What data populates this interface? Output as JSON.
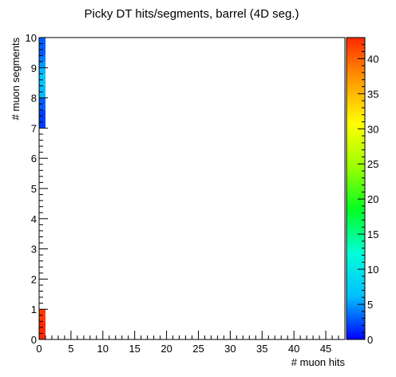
{
  "chart_data": {
    "type": "heatmap",
    "title": "Picky DT hits/segments, barrel (4D seg.)",
    "xlabel": "# muon hits",
    "ylabel": "# muon segments",
    "xlim": [
      0,
      48
    ],
    "ylim": [
      0,
      10
    ],
    "x_bin_width": 1,
    "y_bin_width": 0.2,
    "x_major_ticks": [
      0,
      5,
      10,
      15,
      20,
      25,
      30,
      35,
      40,
      45
    ],
    "y_major_ticks": [
      0,
      1,
      2,
      3,
      4,
      5,
      6,
      7,
      8,
      9,
      10
    ],
    "z_range": [
      0,
      43
    ],
    "z_ticks": [
      0,
      5,
      10,
      15,
      20,
      25,
      30,
      35,
      40
    ],
    "palette": [
      "#0000ff",
      "#00bfff",
      "#00ffd8",
      "#00ff22",
      "#9bff00",
      "#ffff00",
      "#ff9b00",
      "#ff2800"
    ],
    "cells": [
      {
        "x0": 0,
        "x1": 1,
        "y0": 0.0,
        "y1": 0.2,
        "z": 43
      },
      {
        "x0": 0,
        "x1": 1,
        "y0": 0.2,
        "y1": 0.4,
        "z": 43
      },
      {
        "x0": 0,
        "x1": 1,
        "y0": 0.4,
        "y1": 0.6,
        "z": 43
      },
      {
        "x0": 0,
        "x1": 1,
        "y0": 0.6,
        "y1": 0.8,
        "z": 42
      },
      {
        "x0": 0,
        "x1": 1,
        "y0": 0.8,
        "y1": 1.0,
        "z": 42
      },
      {
        "x0": 0,
        "x1": 1,
        "y0": 7.0,
        "y1": 7.2,
        "z": 2
      },
      {
        "x0": 0,
        "x1": 1,
        "y0": 7.2,
        "y1": 7.4,
        "z": 2
      },
      {
        "x0": 0,
        "x1": 1,
        "y0": 7.4,
        "y1": 7.6,
        "z": 2
      },
      {
        "x0": 0,
        "x1": 1,
        "y0": 7.6,
        "y1": 7.8,
        "z": 3
      },
      {
        "x0": 0,
        "x1": 1,
        "y0": 7.8,
        "y1": 8.0,
        "z": 3
      },
      {
        "x0": 0,
        "x1": 1,
        "y0": 8.0,
        "y1": 8.2,
        "z": 6
      },
      {
        "x0": 0,
        "x1": 1,
        "y0": 8.2,
        "y1": 8.4,
        "z": 6
      },
      {
        "x0": 0,
        "x1": 1,
        "y0": 8.4,
        "y1": 8.6,
        "z": 7
      },
      {
        "x0": 0,
        "x1": 1,
        "y0": 8.6,
        "y1": 8.8,
        "z": 7
      },
      {
        "x0": 0,
        "x1": 1,
        "y0": 8.8,
        "y1": 9.0,
        "z": 6
      },
      {
        "x0": 0,
        "x1": 1,
        "y0": 9.0,
        "y1": 9.2,
        "z": 5
      },
      {
        "x0": 0,
        "x1": 1,
        "y0": 9.2,
        "y1": 9.4,
        "z": 4
      },
      {
        "x0": 0,
        "x1": 1,
        "y0": 9.4,
        "y1": 9.6,
        "z": 3
      },
      {
        "x0": 0,
        "x1": 1,
        "y0": 9.6,
        "y1": 9.8,
        "z": 3
      },
      {
        "x0": 0,
        "x1": 1,
        "y0": 9.8,
        "y1": 10.0,
        "z": 3
      }
    ]
  }
}
